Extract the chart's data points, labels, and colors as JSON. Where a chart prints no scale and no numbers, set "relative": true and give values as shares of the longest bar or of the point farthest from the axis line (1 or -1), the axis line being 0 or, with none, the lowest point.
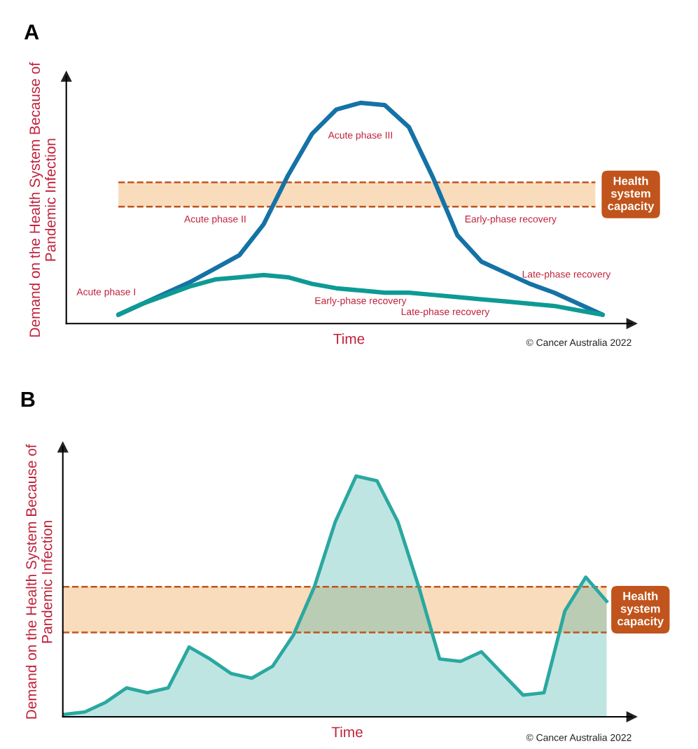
{
  "chart_data": [
    {
      "type": "line",
      "title": "A",
      "xlabel": "Time",
      "ylabel": "Demand on the Health System Because of Pandemic Infection",
      "relative": true,
      "categories": [
        null,
        null,
        null,
        null,
        null,
        null,
        null,
        null,
        null,
        null,
        null,
        null,
        null,
        null,
        null,
        null,
        null,
        null,
        null,
        null,
        null
      ],
      "series": [
        {
          "color": "#1572a6",
          "values": [
            0.04,
            0.09,
            0.14,
            0.19,
            0.25,
            0.31,
            0.45,
            0.67,
            0.86,
            0.97,
            1.0,
            0.99,
            0.89,
            0.66,
            0.4,
            0.28,
            0.23,
            0.18,
            0.14,
            0.09,
            0.04
          ]
        },
        {
          "color": "#0e9a94",
          "values": [
            0.04,
            0.09,
            0.13,
            0.17,
            0.2,
            0.21,
            0.22,
            0.21,
            0.18,
            0.16,
            0.15,
            0.14,
            0.14,
            0.13,
            0.12,
            0.11,
            0.1,
            0.09,
            0.08,
            0.06,
            0.04
          ]
        }
      ],
      "bands": [
        {
          "axis": "y",
          "from": 0.53,
          "to": 0.64,
          "label": "Health system capacity",
          "color": "#f8dcbc"
        }
      ],
      "ref_lines": [
        {
          "axis": "y",
          "value": 0.53,
          "color": "#c0541c",
          "line_style": "dashed"
        },
        {
          "axis": "y",
          "value": 0.64,
          "color": "#c0541c",
          "line_style": "dashed"
        }
      ],
      "annotations": [
        "Acute phase I",
        "Acute phase II",
        "Acute phase III",
        "Early-phase recovery",
        "Late-phase recovery",
        "Early-phase recovery",
        "Late-phase recovery",
        "© Cancer Australia 2022"
      ]
    },
    {
      "type": "area",
      "title": "B",
      "xlabel": "Time",
      "ylabel": "Demand on the Health System Because of Pandemic Infection",
      "relative": true,
      "categories": [
        null,
        null,
        null,
        null,
        null,
        null,
        null,
        null,
        null,
        null,
        null,
        null,
        null,
        null,
        null,
        null,
        null,
        null,
        null,
        null,
        null,
        null,
        null,
        null,
        null,
        null,
        null
      ],
      "series": [
        {
          "color": "#2aa8a0",
          "values": [
            0.01,
            0.02,
            0.06,
            0.12,
            0.1,
            0.12,
            0.29,
            0.24,
            0.18,
            0.16,
            0.21,
            0.34,
            0.54,
            0.81,
            1.0,
            0.98,
            0.81,
            0.54,
            0.24,
            0.23,
            0.27,
            0.18,
            0.09,
            0.1,
            0.44,
            0.58,
            0.48
          ]
        }
      ],
      "bands": [
        {
          "axis": "y",
          "from": 0.35,
          "to": 0.54,
          "label": "Health system capacity",
          "color": "#f8dcbc"
        }
      ],
      "ref_lines": [
        {
          "axis": "y",
          "value": 0.35,
          "color": "#c0541c",
          "line_style": "dashed"
        },
        {
          "axis": "y",
          "value": 0.54,
          "color": "#c0541c",
          "line_style": "dashed"
        }
      ],
      "annotations": [
        "© Cancer Australia 2022"
      ]
    }
  ]
}
